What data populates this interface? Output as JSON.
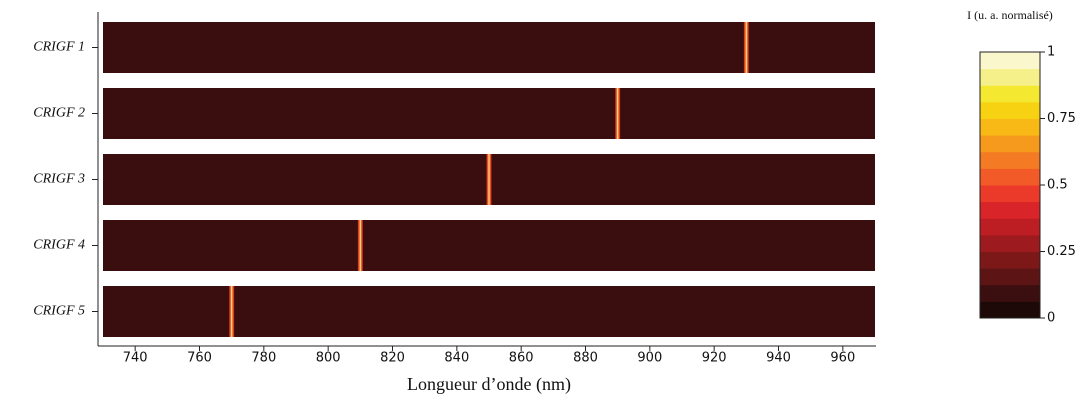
{
  "chart_data": {
    "type": "heatmap",
    "xlabel": "Longueur d’onde (nm)",
    "categories": [
      "CRIGF 1",
      "CRIGF 2",
      "CRIGF 3",
      "CRIGF 4",
      "CRIGF 5"
    ],
    "values": [
      930,
      890,
      850,
      810,
      770
    ],
    "xlim": [
      730,
      970
    ],
    "xticks": [
      740,
      760,
      780,
      800,
      820,
      840,
      860,
      880,
      900,
      920,
      940,
      960
    ],
    "background_color": "#3a0e0e",
    "colorbar": {
      "label": "I (u. a. normalisé)",
      "lim": [
        0,
        1
      ],
      "ticks": [
        0,
        0.25,
        0.5,
        0.75,
        1
      ],
      "colors": [
        "#1e0909",
        "#3b0f0f",
        "#5c1414",
        "#7d1818",
        "#9d1b1e",
        "#bc1e24",
        "#d92429",
        "#ec3a2a",
        "#f25a27",
        "#f47a23",
        "#f69a1d",
        "#f8b816",
        "#f7d212",
        "#f4e830",
        "#f6f08a",
        "#faf7cc"
      ]
    }
  }
}
